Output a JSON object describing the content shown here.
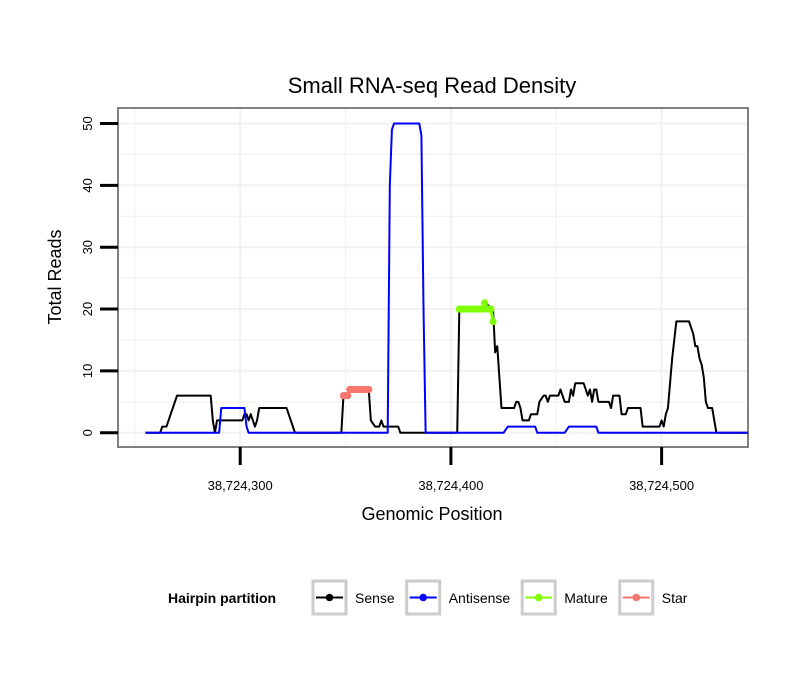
{
  "chart_data": {
    "type": "line",
    "title": "Small RNA-seq Read Density",
    "xlabel": "Genomic Position",
    "ylabel": "Total Reads",
    "xlim": [
      38724242,
      38724541
    ],
    "ylim": [
      -2.3,
      52.5
    ],
    "x_ticks": [
      {
        "value": 38724300,
        "label": "38,724,300"
      },
      {
        "value": 38724400,
        "label": "38,724,400"
      },
      {
        "value": 38724500,
        "label": "38,724,500"
      }
    ],
    "y_ticks": [
      {
        "value": 0,
        "label": "0"
      },
      {
        "value": 10,
        "label": "10"
      },
      {
        "value": 20,
        "label": "20"
      },
      {
        "value": 30,
        "label": "30"
      },
      {
        "value": 40,
        "label": "40"
      },
      {
        "value": 50,
        "label": "50"
      }
    ],
    "grid": true,
    "legend": {
      "title": "Hairpin partition",
      "position": "bottom",
      "entries": [
        "Sense",
        "Antisense",
        "Mature",
        "Star"
      ]
    },
    "series": [
      {
        "name": "Sense",
        "color": "#000000",
        "markers": false,
        "points": [
          [
            38724255,
            0
          ],
          [
            38724262,
            0
          ],
          [
            38724263,
            1
          ],
          [
            38724265,
            1
          ],
          [
            38724266,
            2
          ],
          [
            38724267,
            3
          ],
          [
            38724268,
            4
          ],
          [
            38724269,
            5
          ],
          [
            38724270,
            6
          ],
          [
            38724272,
            6
          ],
          [
            38724286,
            6
          ],
          [
            38724287,
            2
          ],
          [
            38724288,
            0
          ],
          [
            38724289,
            2
          ],
          [
            38724301,
            2
          ],
          [
            38724302,
            3
          ],
          [
            38724303,
            3
          ],
          [
            38724304,
            2
          ],
          [
            38724305,
            3
          ],
          [
            38724306,
            2
          ],
          [
            38724307,
            1
          ],
          [
            38724308,
            2
          ],
          [
            38724309,
            4
          ],
          [
            38724322,
            4
          ],
          [
            38724323,
            3
          ],
          [
            38724325,
            1
          ],
          [
            38724326,
            0
          ],
          [
            38724348,
            0
          ],
          [
            38724349,
            6
          ],
          [
            38724351,
            6
          ],
          [
            38724352,
            7
          ],
          [
            38724359,
            7
          ],
          [
            38724361,
            7
          ],
          [
            38724362,
            2
          ],
          [
            38724364,
            1
          ],
          [
            38724366,
            1
          ],
          [
            38724367,
            2
          ],
          [
            38724368,
            1
          ],
          [
            38724375,
            1
          ],
          [
            38724376,
            0
          ],
          [
            38724403,
            0
          ],
          [
            38724404,
            20
          ],
          [
            38724415,
            20
          ],
          [
            38724416,
            21
          ],
          [
            38724420,
            20
          ],
          [
            38724421,
            13
          ],
          [
            38724422,
            14
          ],
          [
            38724423,
            9
          ],
          [
            38724424,
            4
          ],
          [
            38724430,
            4
          ],
          [
            38724431,
            5
          ],
          [
            38724432,
            5
          ],
          [
            38724433,
            4
          ],
          [
            38724434,
            2
          ],
          [
            38724437,
            2
          ],
          [
            38724438,
            3
          ],
          [
            38724441,
            3
          ],
          [
            38724442,
            5
          ],
          [
            38724444,
            6
          ],
          [
            38724445,
            6
          ],
          [
            38724446,
            5
          ],
          [
            38724447,
            6
          ],
          [
            38724451,
            6
          ],
          [
            38724452,
            7
          ],
          [
            38724453,
            6
          ],
          [
            38724454,
            5
          ],
          [
            38724456,
            5
          ],
          [
            38724457,
            7
          ],
          [
            38724458,
            6
          ],
          [
            38724459,
            8
          ],
          [
            38724463,
            8
          ],
          [
            38724464,
            7
          ],
          [
            38724465,
            6
          ],
          [
            38724466,
            7
          ],
          [
            38724467,
            5
          ],
          [
            38724468,
            7
          ],
          [
            38724469,
            7
          ],
          [
            38724470,
            5
          ],
          [
            38724475,
            5
          ],
          [
            38724476,
            4
          ],
          [
            38724477,
            6
          ],
          [
            38724480,
            6
          ],
          [
            38724481,
            3
          ],
          [
            38724483,
            3
          ],
          [
            38724484,
            4
          ],
          [
            38724490,
            4
          ],
          [
            38724491,
            1
          ],
          [
            38724499,
            1
          ],
          [
            38724500,
            2
          ],
          [
            38724501,
            1
          ],
          [
            38724502,
            3
          ],
          [
            38724503,
            4
          ],
          [
            38724504,
            8
          ],
          [
            38724505,
            12
          ],
          [
            38724506,
            15
          ],
          [
            38724507,
            18
          ],
          [
            38724513,
            18
          ],
          [
            38724514,
            17
          ],
          [
            38724515,
            16
          ],
          [
            38724516,
            14
          ],
          [
            38724517,
            14
          ],
          [
            38724518,
            12
          ],
          [
            38724519,
            11
          ],
          [
            38724520,
            9
          ],
          [
            38724521,
            5
          ],
          [
            38724522,
            4
          ],
          [
            38724524,
            4
          ],
          [
            38724525,
            2
          ],
          [
            38724526,
            0
          ],
          [
            38724541,
            0
          ]
        ]
      },
      {
        "name": "Antisense",
        "color": "#0000ff",
        "markers": false,
        "points": [
          [
            38724255,
            0
          ],
          [
            38724290,
            0
          ],
          [
            38724291,
            4
          ],
          [
            38724302,
            4
          ],
          [
            38724303,
            1
          ],
          [
            38724304,
            0
          ],
          [
            38724370,
            0
          ],
          [
            38724371,
            40
          ],
          [
            38724372,
            49
          ],
          [
            38724373,
            50
          ],
          [
            38724385,
            50
          ],
          [
            38724386,
            48
          ],
          [
            38724387,
            20
          ],
          [
            38724388,
            0
          ],
          [
            38724425,
            0
          ],
          [
            38724427,
            1
          ],
          [
            38724440,
            1
          ],
          [
            38724441,
            0
          ],
          [
            38724454,
            0
          ],
          [
            38724456,
            1
          ],
          [
            38724469,
            1
          ],
          [
            38724470,
            0
          ],
          [
            38724541,
            0
          ]
        ]
      },
      {
        "name": "Mature",
        "color": "#7fff00",
        "markers": true,
        "points": [
          [
            38724404,
            20
          ],
          [
            38724405,
            20
          ],
          [
            38724406,
            20
          ],
          [
            38724407,
            20
          ],
          [
            38724408,
            20
          ],
          [
            38724409,
            20
          ],
          [
            38724410,
            20
          ],
          [
            38724411,
            20
          ],
          [
            38724412,
            20
          ],
          [
            38724413,
            20
          ],
          [
            38724414,
            20
          ],
          [
            38724415,
            20
          ],
          [
            38724416,
            21
          ],
          [
            38724417,
            20
          ],
          [
            38724418,
            20
          ],
          [
            38724419,
            20
          ],
          [
            38724420,
            18
          ]
        ]
      },
      {
        "name": "Star",
        "color": "#f8766d",
        "markers": true,
        "points": [
          [
            38724349,
            6
          ],
          [
            38724350,
            6
          ],
          [
            38724351,
            6
          ],
          [
            38724352,
            7
          ],
          [
            38724353,
            7
          ],
          [
            38724354,
            7
          ],
          [
            38724355,
            7
          ],
          [
            38724356,
            7
          ],
          [
            38724357,
            7
          ],
          [
            38724358,
            7
          ],
          [
            38724359,
            7
          ],
          [
            38724360,
            7
          ],
          [
            38724361,
            7
          ]
        ]
      }
    ]
  }
}
